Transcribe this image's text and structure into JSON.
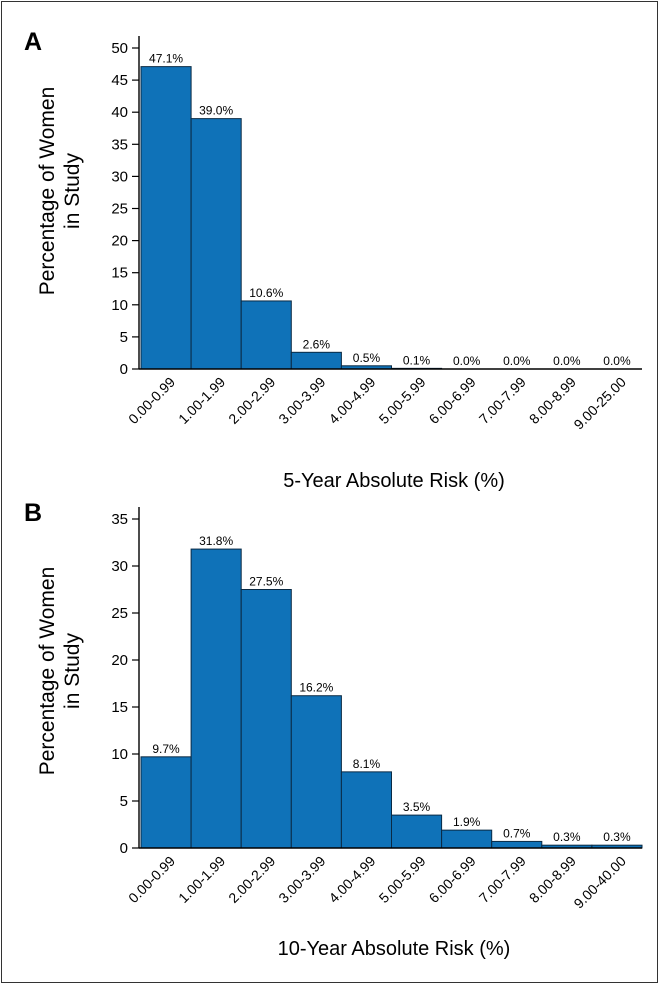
{
  "colors": {
    "bar_fill": "#0f72b8",
    "bar_stroke": "#0a2a44",
    "axis": "#000000"
  },
  "chart_data": [
    {
      "type": "bar",
      "panel_label": "A",
      "categories": [
        "0.00-0.99",
        "1.00-1.99",
        "2.00-2.99",
        "3.00-3.99",
        "4.00-4.99",
        "5.00-5.99",
        "6.00-6.99",
        "7.00-7.99",
        "8.00-8.99",
        "9.00-25.00"
      ],
      "values": [
        47.1,
        39.0,
        10.6,
        2.6,
        0.5,
        0.1,
        0.0,
        0.0,
        0.0,
        0.0
      ],
      "data_labels": [
        "47.1%",
        "39.0%",
        "10.6%",
        "2.6%",
        "0.5%",
        "0.1%",
        "0.0%",
        "0.0%",
        "0.0%",
        "0.0%"
      ],
      "xlabel": "5-Year Absolute Risk (%)",
      "ylabel_lines": [
        "Percentage of Women",
        "in Study"
      ],
      "ylim": [
        0,
        50
      ],
      "yticks": [
        0,
        5,
        10,
        15,
        20,
        25,
        30,
        35,
        40,
        45,
        50
      ],
      "grid": false
    },
    {
      "type": "bar",
      "panel_label": "B",
      "categories": [
        "0.00-0.99",
        "1.00-1.99",
        "2.00-2.99",
        "3.00-3.99",
        "4.00-4.99",
        "5.00-5.99",
        "6.00-6.99",
        "7.00-7.99",
        "8.00-8.99",
        "9.00-40.00"
      ],
      "values": [
        9.7,
        31.8,
        27.5,
        16.2,
        8.1,
        3.5,
        1.9,
        0.7,
        0.3,
        0.3
      ],
      "data_labels": [
        "9.7%",
        "31.8%",
        "27.5%",
        "16.2%",
        "8.1%",
        "3.5%",
        "1.9%",
        "0.7%",
        "0.3%",
        "0.3%"
      ],
      "xlabel": "10-Year Absolute Risk (%)",
      "ylabel_lines": [
        "Percentage of Women",
        "in Study"
      ],
      "ylim": [
        0,
        35
      ],
      "yticks": [
        0,
        5,
        10,
        15,
        20,
        25,
        30,
        35
      ],
      "grid": false
    }
  ]
}
